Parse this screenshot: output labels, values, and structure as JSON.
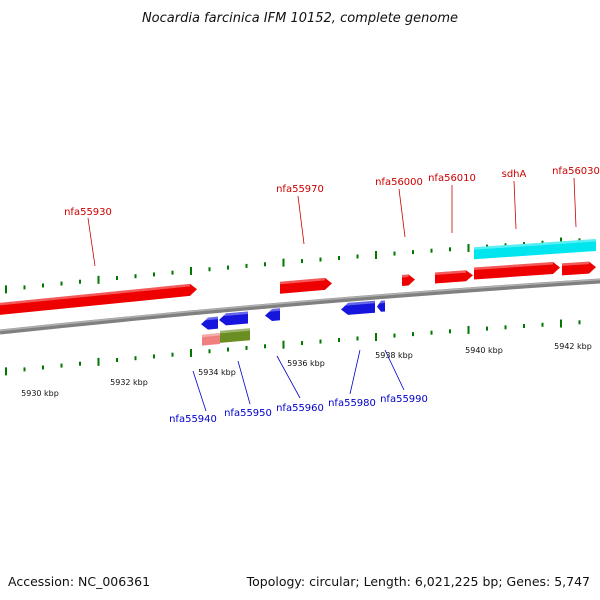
{
  "title": "Nocardia farcinica IFM 10152, complete genome",
  "footer": {
    "accession": "Accession: NC_006361",
    "summary": "Topology: circular; Length: 6,021,225 bp; Genes: 5,747"
  },
  "colors": {
    "forward_gene": "#ee0000",
    "reverse_gene": "#1515dd",
    "cyan_feature": "#00e5ee",
    "salmon_feature": "#f08080",
    "olive_feature": "#6b8e23",
    "backbone": "#808080",
    "tick": "#007700",
    "forward_label": "#cc0000",
    "reverse_label": "#0000cc"
  },
  "axis": {
    "unit": "kbp",
    "kbp_ticks": [
      "5930",
      "5932",
      "5934",
      "5936",
      "5938",
      "5940",
      "5942"
    ]
  },
  "labels_forward": [
    {
      "name": "nfa55930"
    },
    {
      "name": "nfa55970"
    },
    {
      "name": "nfa56000"
    },
    {
      "name": "nfa56010"
    },
    {
      "name": "sdhA"
    },
    {
      "name": "nfa56030"
    }
  ],
  "labels_reverse": [
    {
      "name": "nfa55940"
    },
    {
      "name": "nfa55950"
    },
    {
      "name": "nfa55960"
    },
    {
      "name": "nfa55980"
    },
    {
      "name": "nfa55990"
    }
  ]
}
